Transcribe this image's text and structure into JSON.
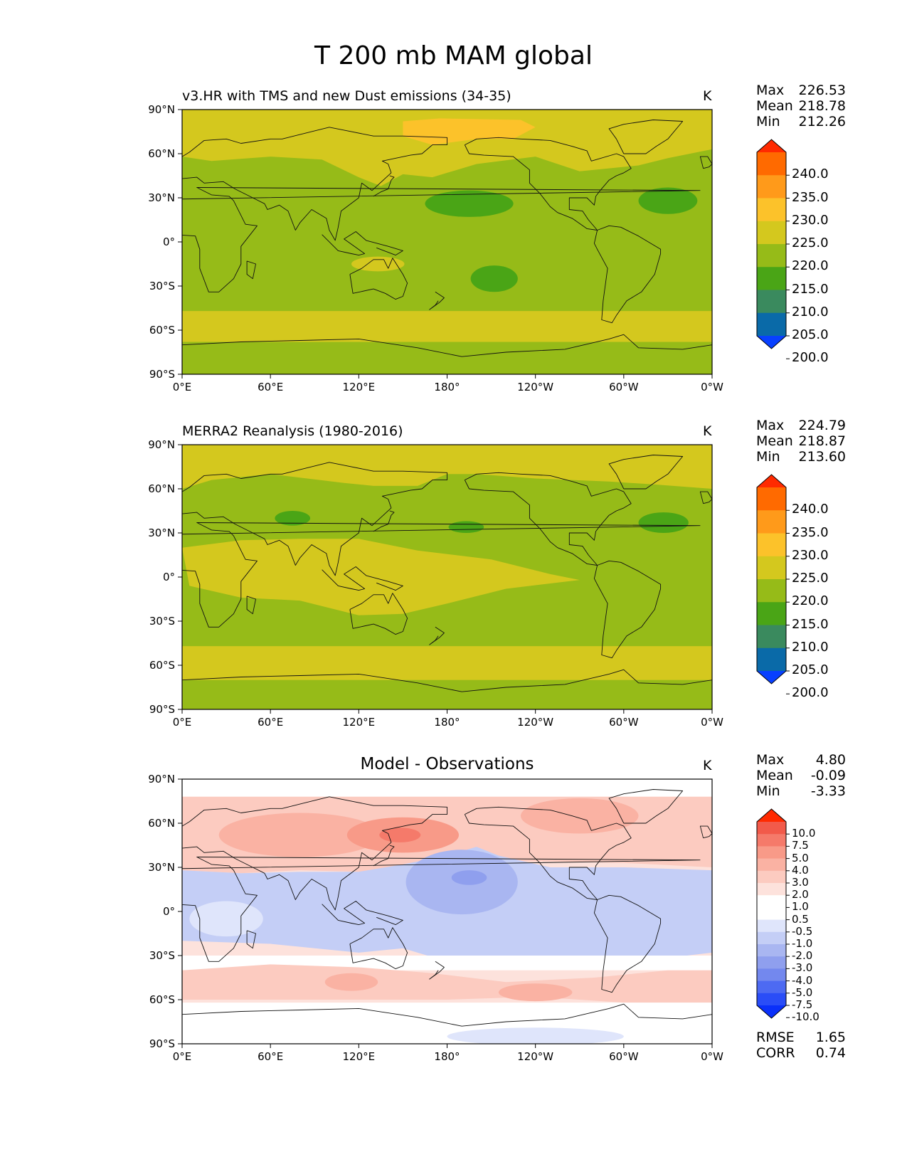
{
  "figure_title": "T 200 mb MAM global",
  "panels": [
    {
      "title": "v3.HR with TMS and new Dust emissions (34-35)",
      "unit": "K",
      "stats": [
        {
          "label": "Max",
          "value": "226.53"
        },
        {
          "label": "Mean",
          "value": "218.78"
        },
        {
          "label": "Min",
          "value": "212.26"
        }
      ]
    },
    {
      "title": "MERRA2 Reanalysis (1980-2016)",
      "unit": "K",
      "stats": [
        {
          "label": "Max",
          "value": "224.79"
        },
        {
          "label": "Mean",
          "value": "218.87"
        },
        {
          "label": "Min",
          "value": "213.60"
        }
      ]
    },
    {
      "title": "Model - Observations",
      "unit": "K",
      "stats": [
        {
          "label": "Max",
          "value": "4.80"
        },
        {
          "label": "Mean",
          "value": "-0.09"
        },
        {
          "label": "Min",
          "value": "-3.33"
        }
      ],
      "extra_stats": [
        {
          "label": "RMSE",
          "value": "1.65"
        },
        {
          "label": "CORR",
          "value": "0.74"
        }
      ]
    }
  ],
  "axes": {
    "lat_ticks": [
      "90°N",
      "60°N",
      "30°N",
      "0°",
      "30°S",
      "60°S",
      "90°S"
    ],
    "lon_ticks": [
      "0°E",
      "60°E",
      "120°E",
      "180°",
      "120°W",
      "60°W",
      "0°W"
    ]
  },
  "colorbars": {
    "field": {
      "labels": [
        "240.0",
        "235.0",
        "230.0",
        "225.0",
        "220.0",
        "215.0",
        "210.0",
        "205.0",
        "200.0"
      ],
      "colors": [
        "#ff2a00",
        "#ff6a00",
        "#ff9a1a",
        "#fcc22a",
        "#d4c81e",
        "#96bb18",
        "#4aa516",
        "#3a8a5e",
        "#0a6aa8",
        "#0840ff"
      ]
    },
    "diff": {
      "labels": [
        "10.0",
        "7.5",
        "5.0",
        "4.0",
        "3.0",
        "2.0",
        "1.0",
        "0.5",
        "-0.5",
        "-1.0",
        "-2.0",
        "-3.0",
        "-4.0",
        "-5.0",
        "-7.5",
        "-10.0"
      ],
      "colors": [
        "#ff2a00",
        "#f25a4a",
        "#f57a6a",
        "#f89a88",
        "#fab2a3",
        "#fccbc0",
        "#fde2dc",
        "#ffffff",
        "#ffffff",
        "#dfe5fb",
        "#c4cef6",
        "#a9b6f1",
        "#8f9fee",
        "#7388ee",
        "#4d6af2",
        "#2a4df7",
        "#0a30fa"
      ]
    }
  },
  "map_layers": {
    "model": {
      "background": "#96bb18",
      "colors": {
        "warm": "#d4c81e",
        "hot": "#fcc22a",
        "cool": "#4aa516"
      }
    },
    "obs": {
      "background": "#96bb18",
      "colors": {
        "warm": "#d4c81e",
        "cool": "#4aa516"
      }
    },
    "diff": {
      "background": "#fde2dc",
      "colors": {
        "white": "#ffffff",
        "pos1": "#fccbc0",
        "pos2": "#fab2a3",
        "pos3": "#f89a88",
        "pos4": "#f57a6a",
        "neg1": "#dfe5fb",
        "neg2": "#c4cef6",
        "neg3": "#a9b6f1",
        "neg4": "#8f9fee"
      }
    }
  }
}
